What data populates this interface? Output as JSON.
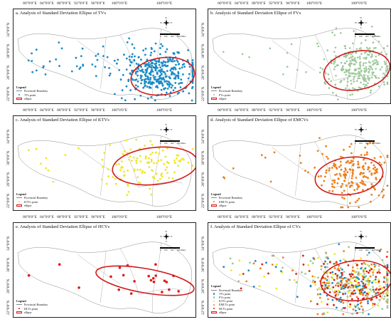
{
  "lon_labels": [
    "80°0'0\"E",
    "84°0'0\"E",
    "88°0'0\"E",
    "92°0'0\"E",
    "96°0'0\"E",
    "100°0'0\"E",
    "108°0'0\"E"
  ],
  "lat_labels": [
    "22°0'0\"N",
    "26°0'0\"N",
    "30°0'0\"N",
    "34°0'0\"N"
  ],
  "scale_labels": [
    "0",
    "100",
    "200",
    "300 Miles"
  ],
  "compass": {
    "n": "N",
    "s": "S",
    "e": "E",
    "w": "W"
  },
  "legend_title": "Legend",
  "boundary_label": "Provincial Boundary",
  "ellipse_label": "ellipse",
  "colors": {
    "tv": "#1a8bc8",
    "fv": "#9cc89a",
    "ktv": "#f0e62a",
    "emcv": "#ef7f1a",
    "hcv": "#e01a1a",
    "ellipse": "#d11a1a",
    "boundary": "#8a8a8a"
  },
  "panels": [
    {
      "id": "a",
      "title": "a. Analysis of Standard Deviation Ellipse of TVs",
      "points": [
        {
          "label": "TVs point",
          "color": "#1a8bc8"
        }
      ]
    },
    {
      "id": "b",
      "title": "b. Analysis of Standard Deviation Ellipse of FVs",
      "points": [
        {
          "label": "FVs point",
          "color": "#9cc89a"
        }
      ]
    },
    {
      "id": "c",
      "title": "c. Analysis of Standard Deviation Ellipse of KTVs",
      "points": [
        {
          "label": "KTVs point",
          "color": "#f0e62a"
        }
      ]
    },
    {
      "id": "d",
      "title": "d. Analysis of Standard Deviation Ellipse of EMCVs",
      "points": [
        {
          "label": "EMCVs point",
          "color": "#ef7f1a"
        }
      ]
    },
    {
      "id": "e",
      "title": "e. Analysis of Standard Deviation Ellipse of HCVs",
      "points": [
        {
          "label": "HCVs point",
          "color": "#e01a1a"
        }
      ]
    },
    {
      "id": "f",
      "title": "f. Analysis of Standard Deviation Ellipse of CVs",
      "points": [
        {
          "label": "TVs point",
          "color": "#1a8bc8"
        },
        {
          "label": "FVs point",
          "color": "#9cc89a"
        },
        {
          "label": "KTVs point",
          "color": "#f0e62a"
        },
        {
          "label": "EMCVs point",
          "color": "#ef7f1a"
        },
        {
          "label": "HCVs point",
          "color": "#e01a1a"
        }
      ]
    }
  ]
}
